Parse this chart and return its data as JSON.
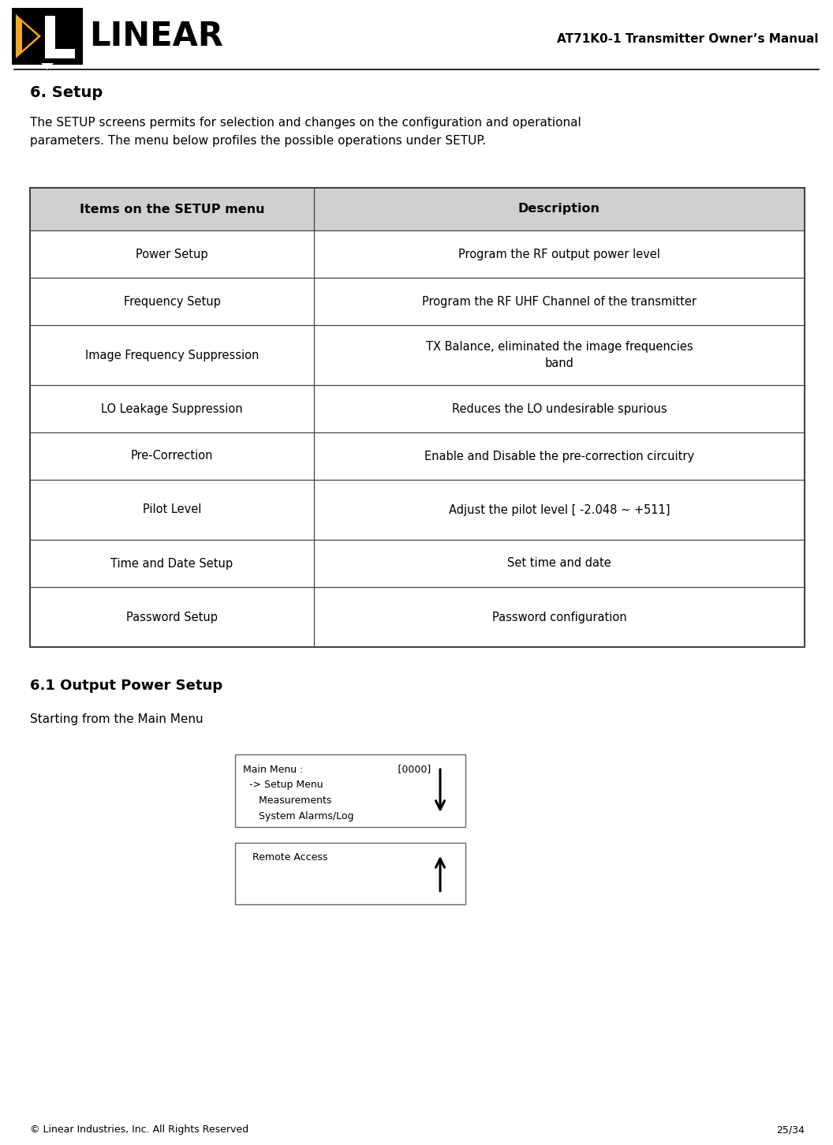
{
  "page_title": "AT71K0-1 Transmitter Owner’s Manual",
  "section_title": "6. Setup",
  "section_subtitle": "6.1 Output Power Setup",
  "intro_text": "The SETUP screens permits for selection and changes on the configuration and operational\nparameters. The menu below profiles the possible operations under SETUP.",
  "starting_text": "Starting from the Main Menu",
  "table_header": [
    "Items on the SETUP menu",
    "Description"
  ],
  "table_rows": [
    [
      "Power Setup",
      "Program the RF output power level"
    ],
    [
      "Frequency Setup",
      "Program the RF UHF Channel of the transmitter"
    ],
    [
      "Image Frequency Suppression",
      "TX Balance, eliminated the image frequencies\nband"
    ],
    [
      "LO Leakage Suppression",
      "Reduces the LO undesirable spurious"
    ],
    [
      "Pre-Correction",
      "Enable and Disable the pre-correction circuitry"
    ],
    [
      "Pilot Level",
      "Adjust the pilot level [ -2.048 ~ +511]"
    ],
    [
      "Time and Date Setup",
      "Set time and date"
    ],
    [
      "Password Setup",
      "Password configuration"
    ]
  ],
  "box1_line1": "Main Menu :                              [0000]",
  "box1_line2": "  -> Setup Menu",
  "box1_line3": "     Measurements",
  "box1_line4": "     System Alarms/Log",
  "box2_line1": "   Remote Access",
  "footer_left": "© Linear Industries, Inc. All Rights Reserved",
  "footer_right": "25/34",
  "bg_color": "#ffffff",
  "table_header_bg": "#d0d0d0",
  "table_border_color": "#444444",
  "box_border_color": "#666666",
  "orange_color": "#f5a623"
}
